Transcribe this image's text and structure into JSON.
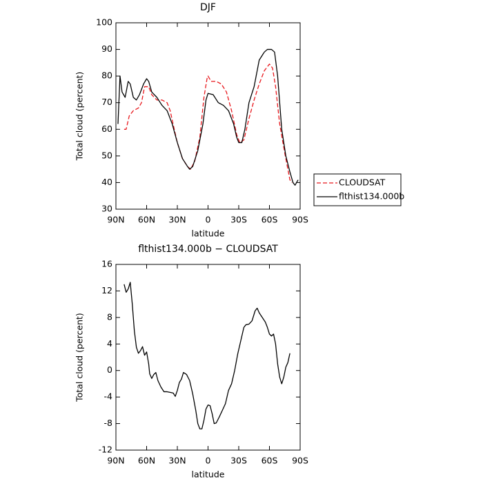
{
  "chart_data": [
    {
      "type": "line",
      "title": "DJF",
      "xlabel": "latitude",
      "ylabel": "Total cloud (percent)",
      "xlim": [
        90,
        -90
      ],
      "xticks": [
        {
          "value": 90,
          "label": "90N"
        },
        {
          "value": 60,
          "label": "60N"
        },
        {
          "value": 30,
          "label": "30N"
        },
        0,
        {
          "value": -30,
          "label": "30S"
        },
        {
          "value": -60,
          "label": "60S"
        },
        {
          "value": -90,
          "label": "90S"
        }
      ],
      "ylim": [
        30,
        100
      ],
      "yticks": [
        30,
        40,
        50,
        60,
        70,
        80,
        90,
        100
      ],
      "legend": "right",
      "series": [
        {
          "name": "CLOUDSAT",
          "color": "#e8161b",
          "linestyle": "dashed",
          "x": [
            82,
            80,
            77,
            73,
            68,
            65,
            62,
            58,
            55,
            50,
            45,
            40,
            37,
            33,
            30,
            25,
            20,
            17,
            13,
            8,
            4,
            1,
            0,
            -3,
            -8,
            -13,
            -18,
            -23,
            -28,
            -31,
            -35,
            -40,
            -45,
            -50,
            -55,
            -60,
            -63,
            -66,
            -70,
            -75,
            -80,
            -82
          ],
          "values": [
            60,
            60,
            65,
            67,
            68,
            70,
            76,
            76,
            73,
            71,
            71,
            70,
            67,
            60,
            55,
            49,
            46,
            45,
            48,
            57,
            72,
            79,
            80,
            78,
            78,
            77,
            74,
            67,
            58,
            55,
            56,
            64,
            71,
            77,
            82,
            84.5,
            83,
            76,
            62,
            51,
            41,
            40
          ]
        },
        {
          "name": "flthist134.000b",
          "color": "#000000",
          "linestyle": "solid",
          "x": [
            88,
            86,
            84,
            81,
            78,
            76,
            73,
            70,
            67,
            63,
            60,
            58,
            55,
            50,
            45,
            40,
            35,
            30,
            25,
            20,
            18,
            15,
            10,
            5,
            2,
            0,
            -5,
            -10,
            -15,
            -20,
            -25,
            -28,
            -30,
            -33,
            -36,
            -40,
            -45,
            -50,
            -55,
            -58,
            -62,
            -65,
            -68,
            -72,
            -76,
            -80,
            -83,
            -85,
            -88
          ],
          "values": [
            62,
            80,
            74,
            72,
            78,
            77,
            72,
            71,
            73,
            77,
            79,
            78,
            74,
            72,
            69,
            67,
            62,
            55,
            49,
            46,
            45,
            46,
            52,
            62,
            71,
            73.5,
            73,
            70,
            69,
            67,
            62,
            57,
            55,
            55,
            60,
            70,
            76,
            86,
            89,
            90,
            90,
            89,
            80,
            60,
            50,
            44,
            40,
            39,
            41
          ]
        }
      ]
    },
    {
      "type": "line",
      "title": "flthist134.000b − CLOUDSAT",
      "xlabel": "latitude",
      "ylabel": "Total cloud (percent)",
      "xlim": [
        90,
        -90
      ],
      "xticks": [
        {
          "value": 90,
          "label": "90N"
        },
        {
          "value": 60,
          "label": "60N"
        },
        {
          "value": 30,
          "label": "30N"
        },
        0,
        {
          "value": -30,
          "label": "30S"
        },
        {
          "value": -60,
          "label": "60S"
        },
        {
          "value": -90,
          "label": "90S"
        }
      ],
      "ylim": [
        -12,
        16
      ],
      "yticks": [
        -12,
        -8,
        -4,
        0,
        4,
        8,
        12,
        16
      ],
      "series": [
        {
          "color": "#000000",
          "linestyle": "solid",
          "x": [
            82,
            80,
            78,
            76,
            74,
            72,
            70,
            68,
            66,
            64,
            62,
            60,
            58,
            57,
            55,
            53,
            51,
            49,
            46,
            43,
            40,
            37,
            34,
            32,
            30,
            28,
            26,
            24,
            21,
            18,
            15,
            12,
            10,
            8,
            6,
            4,
            2,
            0,
            -2,
            -4,
            -6,
            -8,
            -11,
            -14,
            -17,
            -20,
            -23,
            -26,
            -29,
            -32,
            -35,
            -37,
            -40,
            -43,
            -46,
            -48,
            -50,
            -53,
            -56,
            -58,
            -60,
            -62,
            -64,
            -66,
            -68,
            -70,
            -72,
            -74,
            -76,
            -78,
            -80
          ],
          "values": [
            13,
            11.8,
            12.3,
            13.3,
            10,
            6,
            3.5,
            2.6,
            3,
            3.6,
            2.3,
            2.8,
            1,
            -0.5,
            -1.2,
            -0.6,
            -0.3,
            -1.5,
            -2.5,
            -3.2,
            -3.2,
            -3.3,
            -3.4,
            -3.9,
            -3,
            -1.8,
            -1.3,
            -0.3,
            -0.6,
            -1.5,
            -3.5,
            -6,
            -8,
            -8.8,
            -8.8,
            -7.5,
            -5.8,
            -5.2,
            -5.3,
            -6.5,
            -8,
            -7.9,
            -7,
            -6,
            -5,
            -3,
            -2,
            0,
            2.5,
            4.5,
            6.5,
            6.9,
            7,
            7.5,
            9,
            9.4,
            8.7,
            8,
            7.3,
            6.5,
            5.5,
            5.2,
            5.5,
            4,
            1,
            -1,
            -2,
            -1,
            0.5,
            1.2,
            2.6
          ]
        }
      ]
    }
  ]
}
